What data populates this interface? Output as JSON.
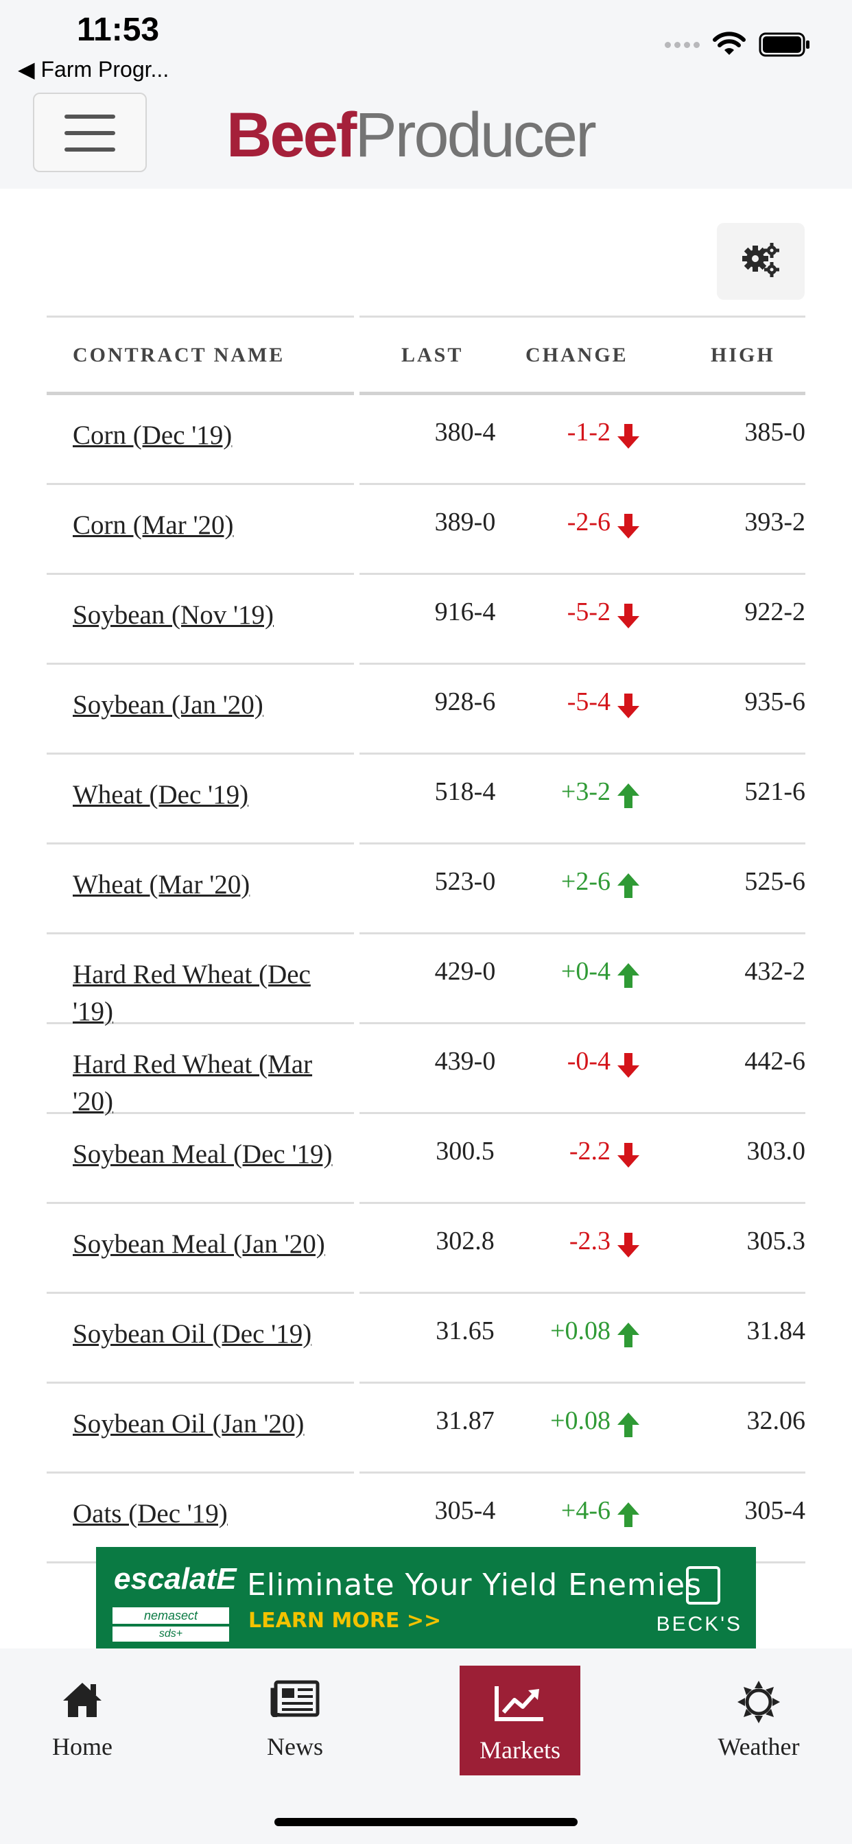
{
  "status_bar": {
    "time": "11:53",
    "back_app": "◀ Farm Progr..."
  },
  "header": {
    "logo_part1": "Beef",
    "logo_part2": "Producer"
  },
  "table": {
    "headers": {
      "contract_name": "CONTRACT NAME",
      "last": "LAST",
      "change": "CHANGE",
      "high": "HIGH"
    },
    "rows": [
      {
        "name": "Corn (Dec '19)",
        "last": "380-4",
        "change": "-1-2",
        "direction": "down",
        "high": "385-0"
      },
      {
        "name": "Corn (Mar '20)",
        "last": "389-0",
        "change": "-2-6",
        "direction": "down",
        "high": "393-2"
      },
      {
        "name": "Soybean (Nov '19)",
        "last": "916-4",
        "change": "-5-2",
        "direction": "down",
        "high": "922-2"
      },
      {
        "name": "Soybean (Jan '20)",
        "last": "928-6",
        "change": "-5-4",
        "direction": "down",
        "high": "935-6"
      },
      {
        "name": "Wheat (Dec '19)",
        "last": "518-4",
        "change": "+3-2",
        "direction": "up",
        "high": "521-6"
      },
      {
        "name": "Wheat (Mar '20)",
        "last": "523-0",
        "change": "+2-6",
        "direction": "up",
        "high": "525-6"
      },
      {
        "name": "Hard Red Wheat (Dec '19)",
        "last": "429-0",
        "change": "+0-4",
        "direction": "up",
        "high": "432-2"
      },
      {
        "name": "Hard Red Wheat (Mar '20)",
        "last": "439-0",
        "change": "-0-4",
        "direction": "down",
        "high": "442-6"
      },
      {
        "name": "Soybean Meal (Dec '19)",
        "last": "300.5",
        "change": "-2.2",
        "direction": "down",
        "high": "303.0"
      },
      {
        "name": "Soybean Meal (Jan '20)",
        "last": "302.8",
        "change": "-2.3",
        "direction": "down",
        "high": "305.3"
      },
      {
        "name": "Soybean Oil (Dec '19)",
        "last": "31.65",
        "change": "+0.08",
        "direction": "up",
        "high": "31.84"
      },
      {
        "name": "Soybean Oil (Jan '20)",
        "last": "31.87",
        "change": "+0.08",
        "direction": "up",
        "high": "32.06"
      },
      {
        "name": "Oats (Dec '19)",
        "last": "305-4",
        "change": "+4-6",
        "direction": "up",
        "high": "305-4"
      }
    ]
  },
  "ad": {
    "brand": "escalatE",
    "sub1": "nemasect",
    "sub2": "sds+",
    "headline": "Eliminate Your Yield Enemies",
    "cta": "LEARN MORE >>",
    "company": "BECK'S"
  },
  "nav": {
    "home": "Home",
    "news": "News",
    "markets": "Markets",
    "weather": "Weather"
  },
  "colors": {
    "brand_red": "#a5203a",
    "down": "#d4141a",
    "up": "#2f9a35",
    "nav_active": "#9c1f36",
    "ad_green": "#0a7a43"
  }
}
